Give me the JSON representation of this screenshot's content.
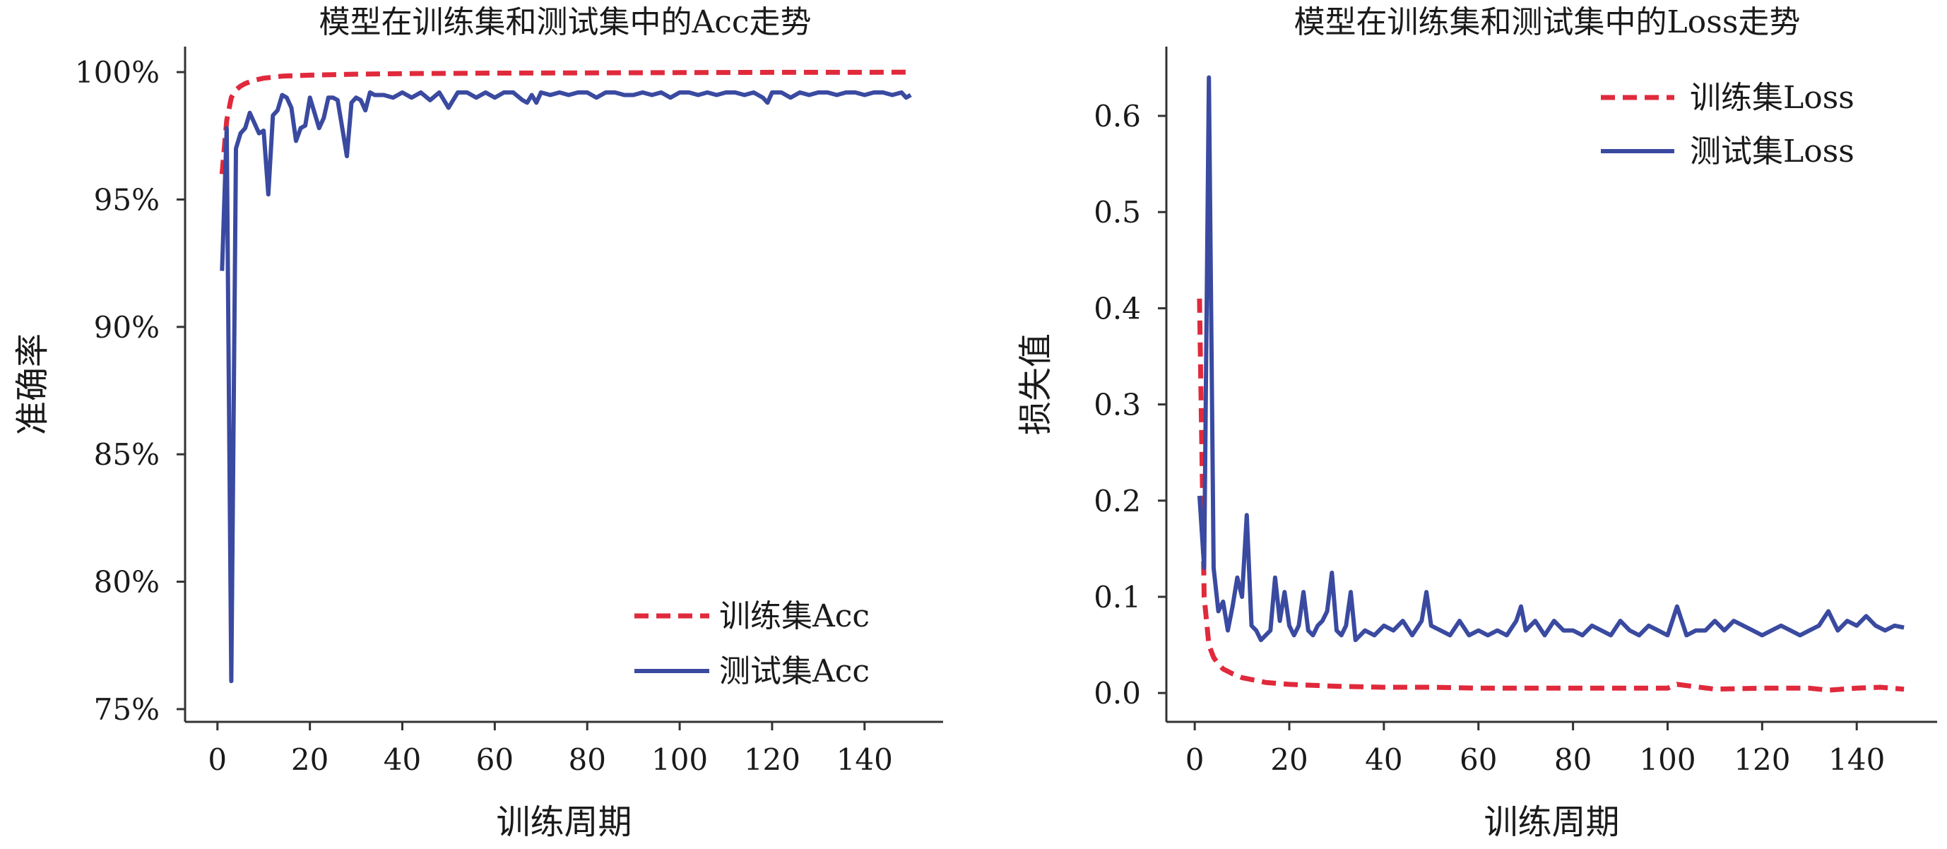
{
  "chart_data": [
    {
      "type": "line",
      "title": "模型在训练集和测试集中的Acc走势",
      "xlabel": "训练周期",
      "ylabel": "准确率",
      "xlim": [
        -7,
        157
      ],
      "ylim": [
        74.5,
        101
      ],
      "x_ticks": [
        0,
        20,
        40,
        60,
        80,
        100,
        120,
        140
      ],
      "x_tick_labels": [
        "0",
        "20",
        "40",
        "60",
        "80",
        "100",
        "120",
        "140"
      ],
      "y_ticks": [
        75,
        80,
        85,
        90,
        95,
        100
      ],
      "y_tick_labels": [
        "75%",
        "80%",
        "85%",
        "90%",
        "95%",
        "100%"
      ],
      "grid": false,
      "legend_position": "bottom-right",
      "series": [
        {
          "name": "训练集Acc",
          "color": "#e02a3c",
          "style": "dashed",
          "x": [
            1,
            2,
            3,
            4,
            5,
            6,
            8,
            10,
            14,
            20,
            30,
            40,
            60,
            80,
            100,
            120,
            140,
            150
          ],
          "y": [
            96.0,
            98.1,
            99.0,
            99.3,
            99.45,
            99.55,
            99.68,
            99.76,
            99.84,
            99.88,
            99.92,
            99.94,
            99.96,
            99.97,
            99.98,
            99.99,
            99.99,
            100.0
          ]
        },
        {
          "name": "测试集Acc",
          "color": "#3a4aa0",
          "style": "solid",
          "x": [
            1,
            2,
            3,
            4,
            5,
            6,
            7,
            8,
            9,
            10,
            11,
            12,
            13,
            14,
            15,
            16,
            17,
            18,
            19,
            20,
            21,
            22,
            23,
            24,
            25,
            26,
            27,
            28,
            29,
            30,
            31,
            32,
            33,
            34,
            36,
            38,
            40,
            42,
            44,
            46,
            48,
            50,
            52,
            54,
            56,
            58,
            60,
            62,
            64,
            66,
            67,
            68,
            69,
            70,
            72,
            74,
            76,
            78,
            80,
            82,
            84,
            86,
            88,
            90,
            92,
            94,
            96,
            98,
            100,
            102,
            104,
            106,
            108,
            110,
            112,
            114,
            116,
            118,
            119,
            120,
            122,
            124,
            126,
            128,
            130,
            132,
            134,
            136,
            138,
            140,
            142,
            144,
            146,
            148,
            149,
            150
          ],
          "y": [
            92.2,
            97.8,
            76.1,
            97.0,
            97.6,
            97.8,
            98.4,
            98.0,
            97.6,
            97.7,
            95.2,
            98.3,
            98.5,
            99.1,
            99.0,
            98.6,
            97.3,
            97.8,
            97.9,
            99.0,
            98.4,
            97.8,
            98.2,
            99.0,
            99.0,
            98.9,
            97.8,
            96.7,
            98.8,
            99.0,
            98.9,
            98.5,
            99.2,
            99.1,
            99.1,
            99.0,
            99.2,
            99.0,
            99.2,
            98.9,
            99.2,
            98.6,
            99.2,
            99.2,
            99.0,
            99.2,
            99.0,
            99.2,
            99.2,
            98.9,
            98.8,
            99.1,
            98.8,
            99.2,
            99.1,
            99.2,
            99.1,
            99.2,
            99.2,
            99.0,
            99.2,
            99.2,
            99.1,
            99.1,
            99.2,
            99.1,
            99.2,
            99.0,
            99.2,
            99.2,
            99.1,
            99.2,
            99.1,
            99.2,
            99.2,
            99.1,
            99.2,
            99.0,
            98.8,
            99.2,
            99.2,
            99.0,
            99.2,
            99.1,
            99.2,
            99.2,
            99.1,
            99.2,
            99.2,
            99.1,
            99.2,
            99.2,
            99.1,
            99.2,
            99.0,
            99.1
          ]
        }
      ]
    },
    {
      "type": "line",
      "title": "模型在训练集和测试集中的Loss走势",
      "xlabel": "训练周期",
      "ylabel": "损失值",
      "xlim": [
        -6,
        157
      ],
      "ylim": [
        -0.03,
        0.672
      ],
      "x_ticks": [
        0,
        20,
        40,
        60,
        80,
        100,
        120,
        140
      ],
      "x_tick_labels": [
        "0",
        "20",
        "40",
        "60",
        "80",
        "100",
        "120",
        "140"
      ],
      "y_ticks": [
        0.0,
        0.1,
        0.2,
        0.3,
        0.4,
        0.5,
        0.6
      ],
      "y_tick_labels": [
        "0.0",
        "0.1",
        "0.2",
        "0.3",
        "0.4",
        "0.5",
        "0.6"
      ],
      "grid": false,
      "legend_position": "top-right",
      "series": [
        {
          "name": "训练集Loss",
          "color": "#e02a3c",
          "style": "dashed",
          "x": [
            1,
            2,
            3,
            4,
            5,
            6,
            8,
            10,
            12,
            15,
            20,
            25,
            30,
            40,
            50,
            60,
            70,
            80,
            90,
            100,
            102,
            110,
            120,
            130,
            134,
            140,
            145,
            150
          ],
          "y": [
            0.41,
            0.1,
            0.05,
            0.037,
            0.03,
            0.025,
            0.02,
            0.016,
            0.014,
            0.011,
            0.009,
            0.008,
            0.007,
            0.006,
            0.006,
            0.005,
            0.005,
            0.005,
            0.005,
            0.005,
            0.009,
            0.004,
            0.005,
            0.005,
            0.003,
            0.005,
            0.006,
            0.004
          ]
        },
        {
          "name": "测试集Loss",
          "color": "#3a4aa0",
          "style": "solid",
          "x": [
            1,
            2,
            3,
            4,
            5,
            6,
            7,
            8,
            9,
            10,
            11,
            12,
            13,
            14,
            15,
            16,
            17,
            18,
            19,
            20,
            21,
            22,
            23,
            24,
            25,
            26,
            27,
            28,
            29,
            30,
            31,
            32,
            33,
            34,
            36,
            38,
            40,
            42,
            44,
            46,
            48,
            49,
            50,
            52,
            54,
            56,
            58,
            60,
            62,
            64,
            66,
            68,
            69,
            70,
            72,
            74,
            76,
            78,
            80,
            82,
            84,
            86,
            88,
            90,
            92,
            94,
            96,
            98,
            100,
            102,
            104,
            106,
            108,
            110,
            112,
            114,
            116,
            118,
            120,
            122,
            124,
            126,
            128,
            130,
            132,
            134,
            136,
            138,
            140,
            142,
            144,
            146,
            148,
            150
          ],
          "y": [
            0.205,
            0.13,
            0.64,
            0.13,
            0.085,
            0.095,
            0.065,
            0.09,
            0.12,
            0.1,
            0.185,
            0.07,
            0.065,
            0.055,
            0.06,
            0.065,
            0.12,
            0.075,
            0.105,
            0.07,
            0.06,
            0.07,
            0.105,
            0.065,
            0.06,
            0.07,
            0.075,
            0.085,
            0.125,
            0.065,
            0.06,
            0.07,
            0.105,
            0.055,
            0.065,
            0.06,
            0.07,
            0.065,
            0.075,
            0.06,
            0.075,
            0.105,
            0.07,
            0.065,
            0.06,
            0.075,
            0.06,
            0.065,
            0.06,
            0.065,
            0.06,
            0.075,
            0.09,
            0.065,
            0.075,
            0.06,
            0.075,
            0.065,
            0.065,
            0.06,
            0.07,
            0.065,
            0.06,
            0.075,
            0.065,
            0.06,
            0.07,
            0.065,
            0.06,
            0.09,
            0.06,
            0.065,
            0.065,
            0.075,
            0.065,
            0.075,
            0.07,
            0.065,
            0.06,
            0.065,
            0.07,
            0.065,
            0.06,
            0.065,
            0.07,
            0.085,
            0.065,
            0.075,
            0.07,
            0.08,
            0.07,
            0.065,
            0.07,
            0.068
          ]
        }
      ]
    }
  ]
}
